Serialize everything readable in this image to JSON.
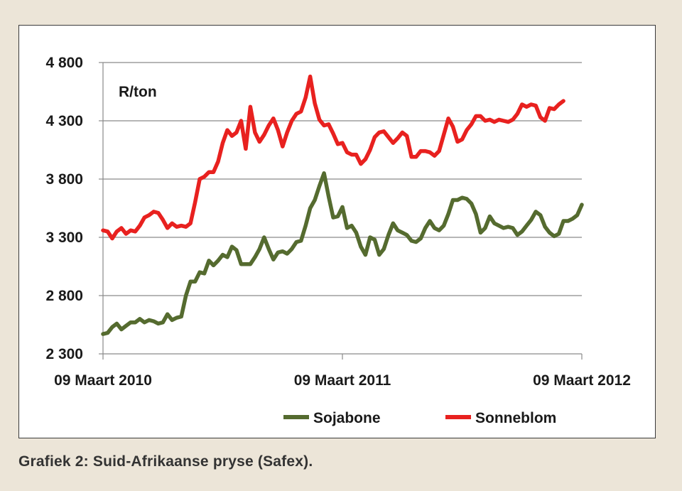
{
  "caption": "Grafiek 2: Suid-Afrikaanse pryse (Safex).",
  "chart_data": {
    "type": "line",
    "unit_label": "R/ton",
    "ylim": [
      2300,
      4800
    ],
    "yticks": [
      2300,
      2800,
      3300,
      3800,
      4300,
      4800
    ],
    "ytick_labels": [
      "2 300",
      "2 800",
      "3 300",
      "3 800",
      "4 300",
      "4 800"
    ],
    "xlim": [
      0,
      104
    ],
    "xticks": [
      0,
      52,
      104
    ],
    "xtick_labels": [
      "09 Maart 2010",
      "09 Maart 2011",
      "09 Maart 2012"
    ],
    "grid": "horizontal",
    "legend_position": "bottom",
    "series": [
      {
        "name": "Sojabone",
        "color": "#556b2f",
        "points": [
          [
            0,
            2470
          ],
          [
            1,
            2480
          ],
          [
            2,
            2530
          ],
          [
            3,
            2560
          ],
          [
            4,
            2510
          ],
          [
            5,
            2540
          ],
          [
            6,
            2570
          ],
          [
            7,
            2570
          ],
          [
            8,
            2600
          ],
          [
            9,
            2570
          ],
          [
            10,
            2590
          ],
          [
            11,
            2580
          ],
          [
            12,
            2560
          ],
          [
            13,
            2570
          ],
          [
            14,
            2640
          ],
          [
            15,
            2590
          ],
          [
            16,
            2610
          ],
          [
            17,
            2620
          ],
          [
            18,
            2800
          ],
          [
            19,
            2920
          ],
          [
            20,
            2920
          ],
          [
            21,
            3000
          ],
          [
            22,
            2990
          ],
          [
            23,
            3100
          ],
          [
            24,
            3060
          ],
          [
            25,
            3100
          ],
          [
            26,
            3150
          ],
          [
            27,
            3130
          ],
          [
            28,
            3220
          ],
          [
            29,
            3190
          ],
          [
            30,
            3070
          ],
          [
            31,
            3070
          ],
          [
            32,
            3070
          ],
          [
            33,
            3130
          ],
          [
            34,
            3200
          ],
          [
            35,
            3300
          ],
          [
            36,
            3200
          ],
          [
            37,
            3110
          ],
          [
            38,
            3170
          ],
          [
            39,
            3180
          ],
          [
            40,
            3160
          ],
          [
            41,
            3200
          ],
          [
            42,
            3260
          ],
          [
            43,
            3270
          ],
          [
            44,
            3400
          ],
          [
            45,
            3550
          ],
          [
            46,
            3620
          ],
          [
            47,
            3740
          ],
          [
            48,
            3850
          ],
          [
            49,
            3650
          ],
          [
            50,
            3470
          ],
          [
            51,
            3480
          ],
          [
            52,
            3560
          ],
          [
            53,
            3380
          ],
          [
            54,
            3400
          ],
          [
            55,
            3340
          ],
          [
            56,
            3220
          ],
          [
            57,
            3150
          ],
          [
            58,
            3300
          ],
          [
            59,
            3280
          ],
          [
            60,
            3150
          ],
          [
            61,
            3200
          ],
          [
            62,
            3320
          ],
          [
            63,
            3420
          ],
          [
            64,
            3360
          ],
          [
            65,
            3340
          ],
          [
            66,
            3320
          ],
          [
            67,
            3270
          ],
          [
            68,
            3260
          ],
          [
            69,
            3290
          ],
          [
            70,
            3380
          ],
          [
            71,
            3440
          ],
          [
            72,
            3380
          ],
          [
            73,
            3360
          ],
          [
            74,
            3400
          ],
          [
            75,
            3500
          ],
          [
            76,
            3620
          ],
          [
            77,
            3620
          ],
          [
            78,
            3640
          ],
          [
            79,
            3630
          ],
          [
            80,
            3590
          ],
          [
            81,
            3500
          ],
          [
            82,
            3340
          ],
          [
            83,
            3380
          ],
          [
            84,
            3480
          ],
          [
            85,
            3420
          ],
          [
            86,
            3400
          ],
          [
            87,
            3380
          ],
          [
            88,
            3390
          ],
          [
            89,
            3380
          ],
          [
            90,
            3320
          ],
          [
            91,
            3350
          ],
          [
            92,
            3400
          ],
          [
            93,
            3450
          ],
          [
            94,
            3520
          ],
          [
            95,
            3490
          ],
          [
            96,
            3390
          ],
          [
            97,
            3340
          ],
          [
            98,
            3310
          ],
          [
            99,
            3330
          ],
          [
            100,
            3440
          ],
          [
            101,
            3440
          ],
          [
            102,
            3460
          ],
          [
            103,
            3490
          ],
          [
            104,
            3580
          ]
        ]
      },
      {
        "name": "Sonneblom",
        "color": "#e8211f",
        "points": [
          [
            0,
            3360
          ],
          [
            1,
            3350
          ],
          [
            2,
            3290
          ],
          [
            3,
            3350
          ],
          [
            4,
            3380
          ],
          [
            5,
            3330
          ],
          [
            6,
            3360
          ],
          [
            7,
            3350
          ],
          [
            8,
            3400
          ],
          [
            9,
            3470
          ],
          [
            10,
            3490
          ],
          [
            11,
            3520
          ],
          [
            12,
            3510
          ],
          [
            13,
            3450
          ],
          [
            14,
            3380
          ],
          [
            15,
            3420
          ],
          [
            16,
            3390
          ],
          [
            17,
            3400
          ],
          [
            18,
            3390
          ],
          [
            19,
            3420
          ],
          [
            20,
            3600
          ],
          [
            21,
            3800
          ],
          [
            22,
            3820
          ],
          [
            23,
            3860
          ],
          [
            24,
            3860
          ],
          [
            25,
            3950
          ],
          [
            26,
            4110
          ],
          [
            27,
            4220
          ],
          [
            28,
            4170
          ],
          [
            29,
            4200
          ],
          [
            30,
            4300
          ],
          [
            31,
            4060
          ],
          [
            32,
            4420
          ],
          [
            33,
            4200
          ],
          [
            34,
            4120
          ],
          [
            35,
            4180
          ],
          [
            36,
            4260
          ],
          [
            37,
            4320
          ],
          [
            38,
            4220
          ],
          [
            39,
            4080
          ],
          [
            40,
            4200
          ],
          [
            41,
            4300
          ],
          [
            42,
            4360
          ],
          [
            43,
            4380
          ],
          [
            44,
            4500
          ],
          [
            45,
            4680
          ],
          [
            46,
            4450
          ],
          [
            47,
            4310
          ],
          [
            48,
            4260
          ],
          [
            49,
            4270
          ],
          [
            50,
            4190
          ],
          [
            51,
            4100
          ],
          [
            52,
            4110
          ],
          [
            53,
            4030
          ],
          [
            54,
            4010
          ],
          [
            55,
            4010
          ],
          [
            56,
            3930
          ],
          [
            57,
            3970
          ],
          [
            58,
            4050
          ],
          [
            59,
            4160
          ],
          [
            60,
            4200
          ],
          [
            61,
            4210
          ],
          [
            62,
            4160
          ],
          [
            63,
            4110
          ],
          [
            64,
            4150
          ],
          [
            65,
            4200
          ],
          [
            66,
            4170
          ],
          [
            67,
            3990
          ],
          [
            68,
            3990
          ],
          [
            69,
            4040
          ],
          [
            70,
            4040
          ],
          [
            71,
            4030
          ],
          [
            72,
            4000
          ],
          [
            73,
            4040
          ],
          [
            74,
            4180
          ],
          [
            75,
            4320
          ],
          [
            76,
            4250
          ],
          [
            77,
            4120
          ],
          [
            78,
            4140
          ],
          [
            79,
            4220
          ],
          [
            80,
            4270
          ],
          [
            81,
            4340
          ],
          [
            82,
            4340
          ],
          [
            83,
            4300
          ],
          [
            84,
            4310
          ],
          [
            85,
            4290
          ],
          [
            86,
            4310
          ],
          [
            87,
            4300
          ],
          [
            88,
            4290
          ],
          [
            89,
            4310
          ],
          [
            90,
            4360
          ],
          [
            91,
            4440
          ],
          [
            92,
            4420
          ],
          [
            93,
            4440
          ],
          [
            94,
            4430
          ],
          [
            95,
            4330
          ],
          [
            96,
            4300
          ],
          [
            97,
            4410
          ],
          [
            98,
            4400
          ],
          [
            99,
            4440
          ],
          [
            100,
            4470
          ]
        ]
      }
    ]
  }
}
